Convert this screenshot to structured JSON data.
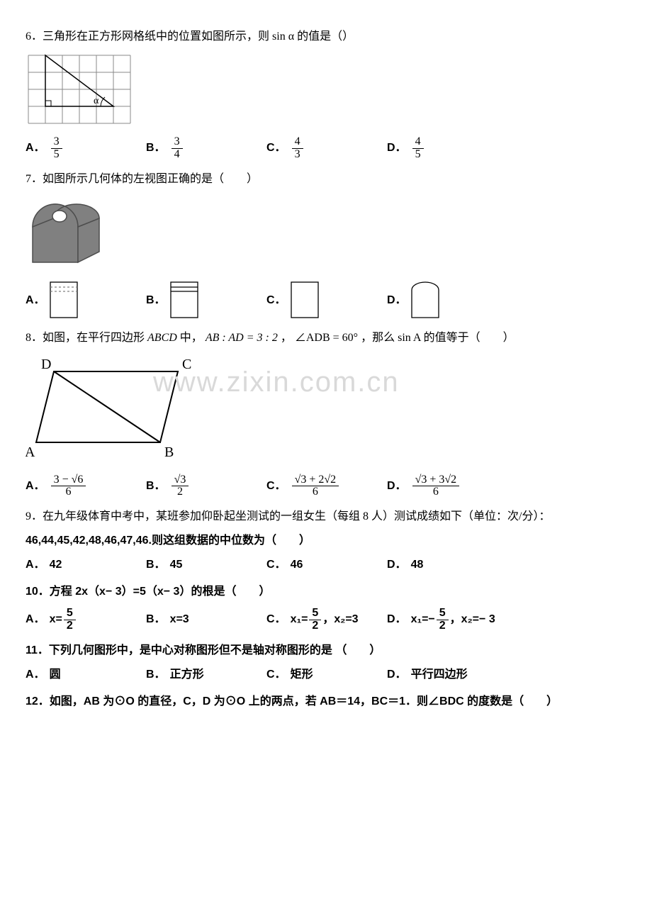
{
  "watermark": "www.zixin.com.cn",
  "q6": {
    "stem_pre": "6．三角形在正方形网格纸中的位置如图所示，则 ",
    "stem_mid": "sin α",
    "stem_post": " 的值是（）",
    "grid": {
      "cell": 24,
      "cols": 6,
      "rows": 4,
      "line_color": "#888888",
      "triangle_color": "#000000",
      "alpha_label": "α"
    },
    "choices": {
      "A": {
        "num": "3",
        "den": "5"
      },
      "B": {
        "num": "3",
        "den": "4"
      },
      "C": {
        "num": "4",
        "den": "3"
      },
      "D": {
        "num": "4",
        "den": "5"
      }
    }
  },
  "q7": {
    "stem": "7．如图所示几何体的左视图正确的是（　　）",
    "solid": {
      "fill": "#808080",
      "stroke": "#4d4d4d",
      "hole_fill": "#ffffff"
    },
    "views": {
      "w": 40,
      "h": 52,
      "stroke": "#000000",
      "dash_color": "#808080"
    },
    "labels": {
      "A": "A．",
      "B": "B．",
      "C": "C．",
      "D": "D．"
    }
  },
  "q8": {
    "stem_pre": "8．如图，在平行四边形 ",
    "abcd": "ABCD",
    "stem_mid1": " 中， ",
    "ratio": "AB : AD = 3 : 2",
    "stem_mid2": " ， ",
    "angle": "∠ADB = 60°",
    "stem_mid3": " ，那么 ",
    "sinA": "sin A",
    "stem_post": " 的值等于（　　）",
    "parallelogram": {
      "labels": {
        "D": "D",
        "C": "C",
        "A": "A",
        "B": "B"
      },
      "stroke": "#000000"
    },
    "choices": {
      "A": {
        "num": "3 − √6",
        "den": "6"
      },
      "B": {
        "num": "√3",
        "den": "2"
      },
      "C": {
        "num": "√3 + 2√2",
        "den": "6"
      },
      "D": {
        "num": "√3 + 3√2",
        "den": "6"
      }
    }
  },
  "q9": {
    "line1": "9．在九年级体育中考中，某班参加仰卧起坐测试的一组女生（每组 8 人）测试成绩如下（单位：次/分）：",
    "line2": "46,44,45,42,48,46,47,46.则这组数据的中位数为（　　）",
    "choices": {
      "A": "42",
      "B": "45",
      "C": "46",
      "D": "48"
    },
    "labels": {
      "A": "A．",
      "B": "B．",
      "C": "C．",
      "D": "D．"
    }
  },
  "q10": {
    "stem": "10．方程 2x（x− 3）=5（x− 3）的根是（　　）",
    "labels": {
      "A": "A．",
      "B": "B．",
      "C": "C．",
      "D": "D．"
    },
    "A": {
      "pre": "x=",
      "num": "5",
      "den": "2"
    },
    "B": "x=3",
    "C": {
      "pre1": "x₁=",
      "num": "5",
      "den": "2",
      "mid": " ，x₂=3"
    },
    "D": {
      "pre1": "x₁=− ",
      "num": "5",
      "den": "2",
      "mid": " ，x₂=− 3"
    }
  },
  "q11": {
    "stem": "11．下列几何图形中，是中心对称图形但不是轴对称图形的是 （　　）",
    "choices": {
      "A": "圆",
      "B": "正方形",
      "C": "矩形",
      "D": "平行四边形"
    },
    "labels": {
      "A": "A．",
      "B": "B．",
      "C": "C．",
      "D": "D．"
    }
  },
  "q12": {
    "stem": "12．如图，AB 为⊙O 的直径，C，D 为⊙O 上的两点，若 AB＝14，BC＝1．则∠BDC 的度数是（　　）"
  }
}
